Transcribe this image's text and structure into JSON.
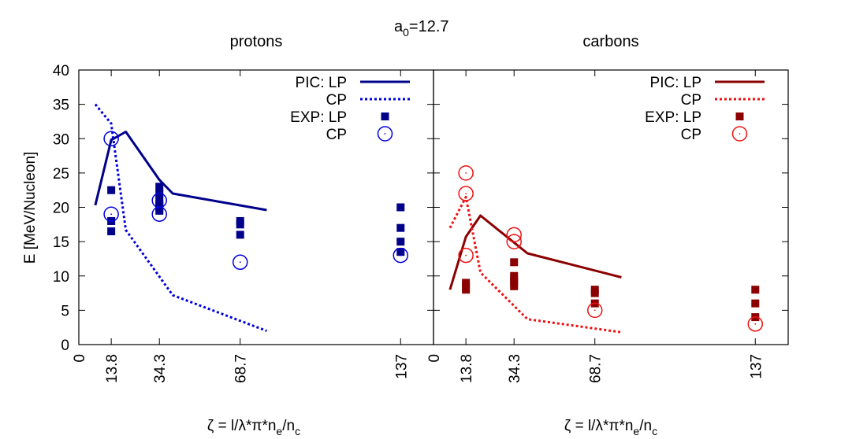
{
  "figure": {
    "title_main": "a",
    "title_sub": "0",
    "title_rest": "=12.7"
  },
  "axes": {
    "ylabel": "E [MeV/Nucleon]",
    "xlabel_pre": "ζ = l/λ*π*n",
    "xlabel_sub1": "e",
    "xlabel_mid": "/n",
    "xlabel_sub2": "c"
  },
  "chart_data": [
    {
      "type": "line",
      "title": "protons",
      "xlim": [
        0,
        151
      ],
      "ylim": [
        0,
        40
      ],
      "xticks": [
        0,
        13.8,
        34.3,
        68.7,
        137
      ],
      "xtick_labels": [
        "0",
        "13.8",
        "34.3",
        "68.7",
        "137"
      ],
      "yticks": [
        0,
        5,
        10,
        15,
        20,
        25,
        30,
        35,
        40
      ],
      "grid": false,
      "legend_position": "top-right",
      "series": [
        {
          "name": "PIC: LP",
          "legend_prefix": "PIC: ",
          "legend_label": "LP",
          "kind": "line",
          "style": "solid",
          "color": "#00008b",
          "x": [
            7,
            13.8,
            20,
            34.3,
            40,
            80
          ],
          "y": [
            20.3,
            29.8,
            31,
            24,
            22,
            19.6
          ]
        },
        {
          "name": "CP",
          "legend_prefix": "",
          "legend_label": "CP",
          "kind": "line",
          "style": "dotted",
          "color": "#0000dd",
          "x": [
            7,
            13.8,
            20,
            40,
            80
          ],
          "y": [
            35,
            32.2,
            16.7,
            7.2,
            2
          ]
        },
        {
          "name": "EXP: LP",
          "legend_prefix": "EXP: ",
          "legend_label": "LP",
          "kind": "square",
          "color": "#00008b",
          "x": [
            13.8,
            13.8,
            13.8,
            34.3,
            34.3,
            34.3,
            34.3,
            34.3,
            34.3,
            68.7,
            68.7,
            68.7,
            137,
            137,
            137,
            137
          ],
          "y": [
            22.5,
            18,
            16.5,
            23,
            22,
            21,
            20.5,
            20,
            19.5,
            18,
            17.5,
            16,
            20,
            17,
            15,
            13.5
          ]
        },
        {
          "name": "CP",
          "legend_prefix": "",
          "legend_label": "CP",
          "kind": "circle",
          "color": "#0000dd",
          "x": [
            13.8,
            13.8,
            34.3,
            34.3,
            68.7,
            137
          ],
          "y": [
            30,
            19,
            21,
            19,
            12,
            13
          ]
        }
      ]
    },
    {
      "type": "line",
      "title": "carbons",
      "xlim": [
        0,
        151
      ],
      "ylim": [
        0,
        40
      ],
      "xticks": [
        0,
        13.8,
        34.3,
        68.7,
        137
      ],
      "xtick_labels": [
        "0",
        "13.8",
        "34.3",
        "68.7",
        "137"
      ],
      "yticks": [
        0,
        5,
        10,
        15,
        20,
        25,
        30,
        35,
        40
      ],
      "grid": false,
      "legend_position": "top-right",
      "series": [
        {
          "name": "PIC: LP",
          "legend_prefix": "PIC: ",
          "legend_label": "LP",
          "kind": "line",
          "style": "solid",
          "color": "#8b0000",
          "x": [
            7,
            13.8,
            20,
            40,
            80
          ],
          "y": [
            8,
            15.7,
            18.8,
            13.3,
            9.8
          ]
        },
        {
          "name": "CP",
          "legend_prefix": "",
          "legend_label": "CP",
          "kind": "line",
          "style": "dotted",
          "color": "#ee1111",
          "x": [
            7,
            13.8,
            20,
            40,
            80
          ],
          "y": [
            17,
            21.5,
            10.5,
            3.7,
            1.8
          ]
        },
        {
          "name": "EXP: LP",
          "legend_prefix": "EXP: ",
          "legend_label": "LP",
          "kind": "square",
          "color": "#8b0000",
          "x": [
            13.8,
            13.8,
            13.8,
            34.3,
            34.3,
            34.3,
            34.3,
            34.3,
            68.7,
            68.7,
            68.7,
            137,
            137,
            137
          ],
          "y": [
            9,
            8.5,
            8,
            12,
            10,
            9.5,
            9,
            8.5,
            8,
            7.5,
            6,
            8,
            6,
            4
          ]
        },
        {
          "name": "CP",
          "legend_prefix": "",
          "legend_label": "CP",
          "kind": "circle",
          "color": "#ee1111",
          "x": [
            13.8,
            13.8,
            13.8,
            34.3,
            34.3,
            68.7,
            137
          ],
          "y": [
            25,
            22,
            13,
            16,
            15,
            5,
            3
          ]
        }
      ]
    }
  ]
}
